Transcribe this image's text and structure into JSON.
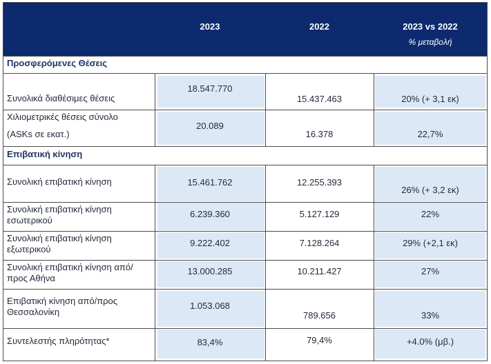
{
  "header": {
    "col_2023": "2023",
    "col_2022": "2022",
    "col_change": "2023 vs 2022",
    "col_change_sub": "% μεταβολή"
  },
  "sections": {
    "seats": "Προσφερόμενες Θέσεις",
    "passengers": "Επιβατική κίνηση"
  },
  "rows": [
    {
      "label": "Συνολικά διαθέσιμες θέσεις",
      "v2023": "18.547.770",
      "v2022": "15.437.463",
      "change": "20% (+ 3,1 εκ)"
    },
    {
      "label_line1": "Χιλιομετρικές θέσεις σύνολο",
      "label_line2": "(ASKs σε εκατ.)",
      "v2023": "20.089",
      "v2022": "16.378",
      "change": "22,7%"
    },
    {
      "label": "Συνολική επιβατική κίνηση",
      "v2023": "15.461.762",
      "v2022": "12.255.393",
      "change": "26% (+ 3,2 εκ)"
    },
    {
      "label_line1": "Συνολική επιβατική κίνηση",
      "label_line2": "εσωτερικού",
      "v2023": "6.239.360",
      "v2022": "5.127.129",
      "change": "22%"
    },
    {
      "label_line1": "Συνολική επιβατική κίνηση",
      "label_line2": "εξωτερικού",
      "v2023": "9.222.402",
      "v2022": "7.128.264",
      "change": "29% (+2,1 εκ)"
    },
    {
      "label_line1": "Συνολική επιβατική κίνηση από/",
      "label_line2": "προς Αθήνα",
      "v2023": "13.000.285",
      "v2022": "10.211.427",
      "change": "27%"
    },
    {
      "label_line1": "Επιβατική κίνηση  από/προς",
      "label_line2": "Θεσσαλονίκη",
      "v2023": "1.053.068",
      "v2022": "789.656",
      "change": "33%"
    },
    {
      "label": "Συντελεστής πληρότητας*",
      "v2023": "83,4%",
      "v2022": "79,4%",
      "change": "+4.0% (μβ.)"
    }
  ]
}
